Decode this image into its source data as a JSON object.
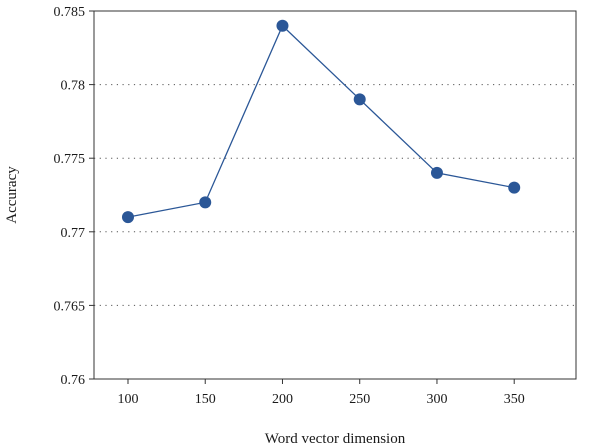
{
  "chart_data": {
    "type": "line",
    "title": "",
    "xlabel": "Word vector dimension",
    "ylabel": "Accuracy",
    "x": [
      100,
      150,
      200,
      250,
      300,
      350
    ],
    "series": [
      {
        "values": [
          0.771,
          0.772,
          0.784,
          0.779,
          0.774,
          0.773
        ],
        "color": "#2b5797"
      }
    ],
    "xticks": [
      100,
      150,
      200,
      250,
      300,
      350
    ],
    "yticks": [
      0.76,
      0.765,
      0.77,
      0.775,
      0.78,
      0.785
    ],
    "ytick_labels": [
      "0.76",
      "0.765",
      "0.77",
      "0.775",
      "0.78",
      "0.785"
    ],
    "xlim": [
      78,
      390
    ],
    "ylim": [
      0.76,
      0.785
    ],
    "grid": "horizontal-dotted",
    "legend": "none"
  }
}
